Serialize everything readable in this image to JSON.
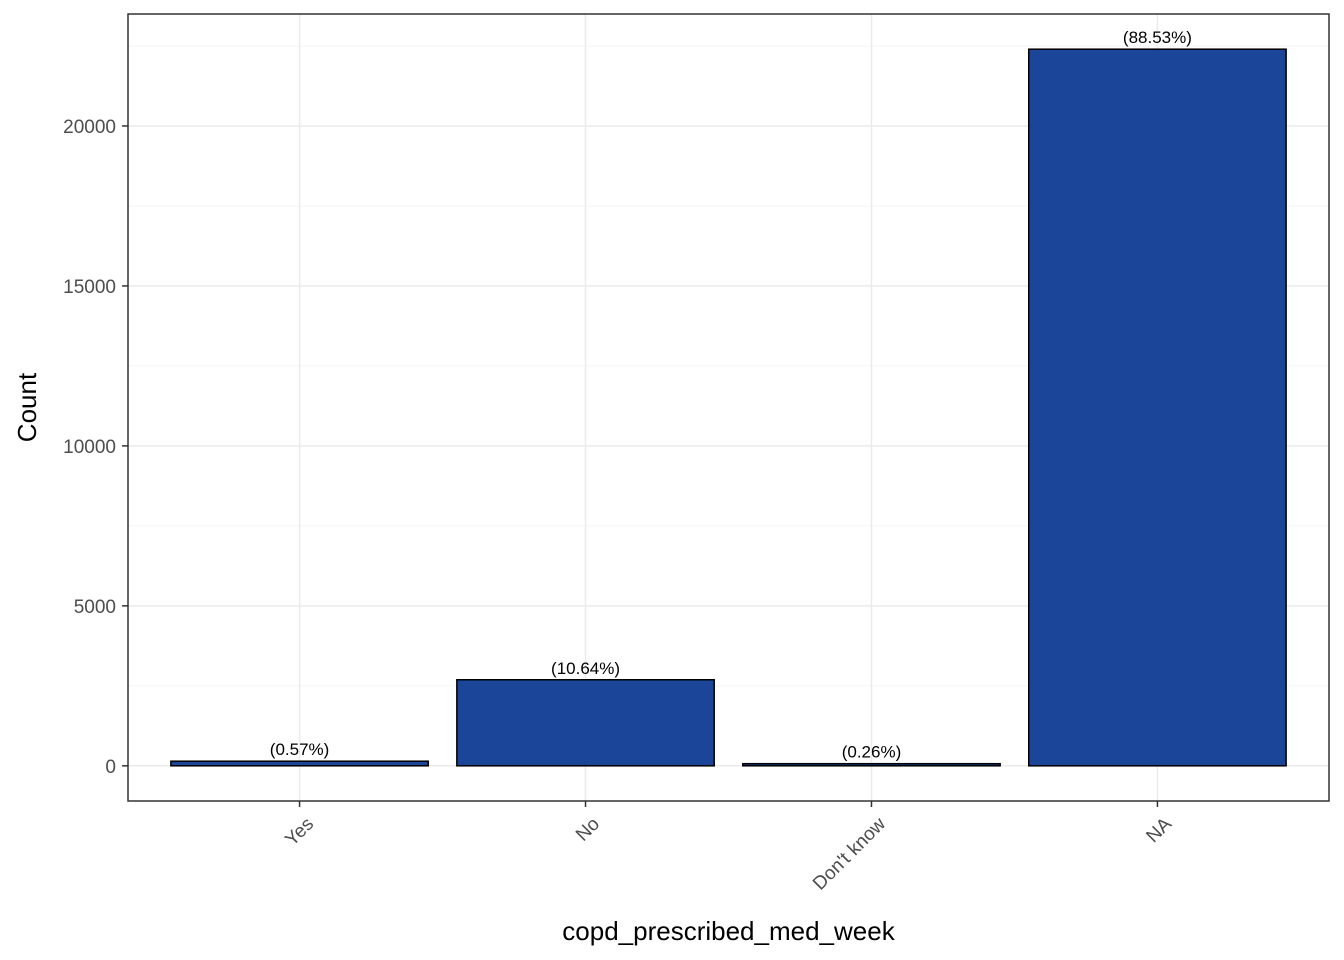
{
  "chart_data": {
    "type": "bar",
    "categories": [
      "Yes",
      "No",
      "Don't know",
      "NA"
    ],
    "values": [
      144,
      2690,
      66,
      22400
    ],
    "labels": [
      "(0.57%)",
      "(10.64%)",
      "(0.26%)",
      "(88.53%)"
    ],
    "xlabel": "copd_prescribed_med_week",
    "ylabel": "Count",
    "ylim": [
      -1100,
      23500
    ],
    "yticks": [
      0,
      5000,
      10000,
      15000,
      20000
    ],
    "yticks_minor": [
      2500,
      7500,
      12500,
      17500,
      22500
    ],
    "grid": true,
    "legend": "none",
    "x_tick_rotation": -45
  },
  "colors": {
    "bar_fill": "#1a4599",
    "bar_stroke": "#000000",
    "grid_major": "#ebebeb",
    "grid_minor": "#f5f5f5",
    "panel_border": "#333333",
    "tick_text": "#4d4d4d"
  }
}
